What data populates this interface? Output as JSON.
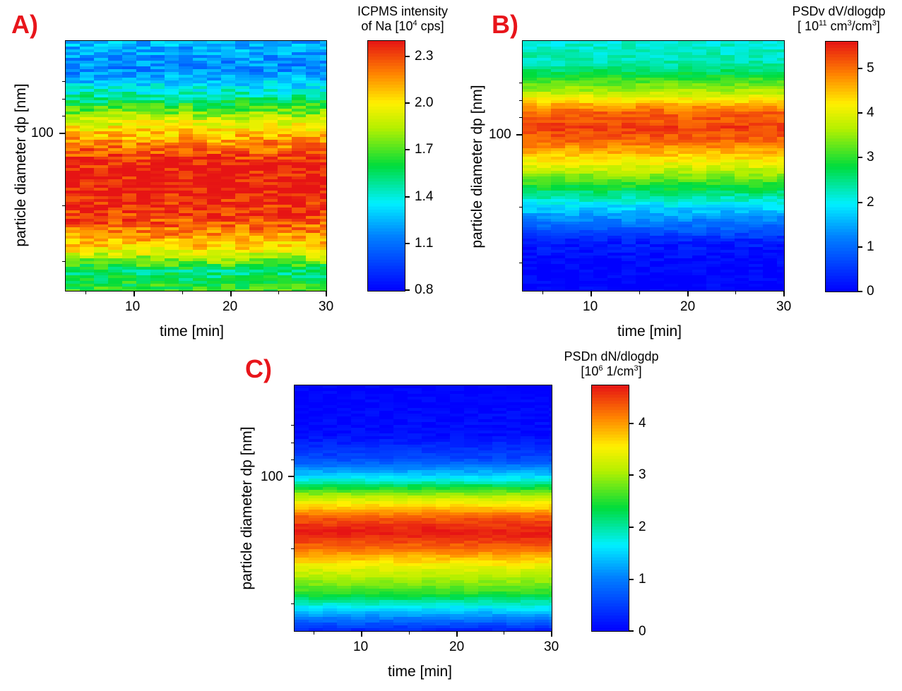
{
  "chart_data": [
    {
      "panel": "A)",
      "type": "heatmap",
      "xlabel": "time [min]",
      "ylabel": "particle diameter dp [nm]",
      "xticks": [
        "10",
        "20",
        "30"
      ],
      "yticks": [
        "100"
      ],
      "xlim": [
        3,
        30
      ],
      "yscale": "log",
      "colorbar": {
        "title_line1": "ICPMS intensity",
        "title_line2_pre": "of Na [10",
        "title_line2_sup": "4",
        "title_line2_post": " cps]",
        "ticks": [
          "2.3",
          "2.0",
          "1.7",
          "1.4",
          "1.1",
          "0.8"
        ],
        "range": [
          0.8,
          2.4
        ]
      },
      "profile": {
        "dp_frac": [
          0.0,
          0.08,
          0.18,
          0.3,
          0.42,
          0.52,
          0.6,
          0.68,
          0.78,
          0.88,
          1.0
        ],
        "level": [
          0.55,
          0.45,
          0.78,
          0.95,
          1.0,
          0.98,
          0.85,
          0.7,
          0.42,
          0.22,
          0.28
        ]
      }
    },
    {
      "panel": "B)",
      "type": "heatmap",
      "xlabel": "time [min]",
      "ylabel": "particle diameter dp [nm]",
      "xticks": [
        "10",
        "20",
        "30"
      ],
      "yticks": [
        "100"
      ],
      "xlim": [
        3,
        30
      ],
      "yscale": "log",
      "colorbar": {
        "title_line1": "PSDv dV/dlogdp",
        "title_line2_pre": "[ 10",
        "title_line2_sup": "11",
        "title_line2_post": " cm",
        "title_line2_sup2": "3",
        "title_line2_post2": "/cm",
        "title_line2_sup3": "3",
        "title_line2_post3": "]",
        "ticks": [
          "5",
          "4",
          "3",
          "2",
          "1",
          "0"
        ],
        "range": [
          0,
          5.5
        ]
      },
      "profile": {
        "dp_frac": [
          0.0,
          0.1,
          0.2,
          0.35,
          0.5,
          0.6,
          0.65,
          0.72,
          0.8,
          0.9,
          1.0
        ],
        "level": [
          0.0,
          0.0,
          0.05,
          0.35,
          0.7,
          0.9,
          0.95,
          0.9,
          0.65,
          0.42,
          0.38
        ]
      }
    },
    {
      "panel": "C)",
      "type": "heatmap",
      "xlabel": "time [min]",
      "ylabel": "particle diameter dp [nm]",
      "xticks": [
        "10",
        "20",
        "30"
      ],
      "yticks": [
        "100"
      ],
      "xlim": [
        3,
        30
      ],
      "yscale": "log",
      "colorbar": {
        "title_line1": "PSDn dN/dlogdp",
        "title_line2_pre": "[10",
        "title_line2_sup": "6",
        "title_line2_post": " 1/cm",
        "title_line2_sup2": "3",
        "title_line2_post2": "]",
        "ticks": [
          "4",
          "3",
          "2",
          "1",
          "0"
        ],
        "range": [
          0,
          4.7
        ]
      },
      "profile": {
        "dp_frac": [
          0.0,
          0.08,
          0.16,
          0.25,
          0.34,
          0.4,
          0.46,
          0.55,
          0.62,
          0.7,
          0.8,
          1.0
        ],
        "level": [
          0.05,
          0.3,
          0.55,
          0.7,
          0.9,
          1.0,
          0.92,
          0.65,
          0.35,
          0.12,
          0.02,
          0.0
        ]
      }
    }
  ]
}
